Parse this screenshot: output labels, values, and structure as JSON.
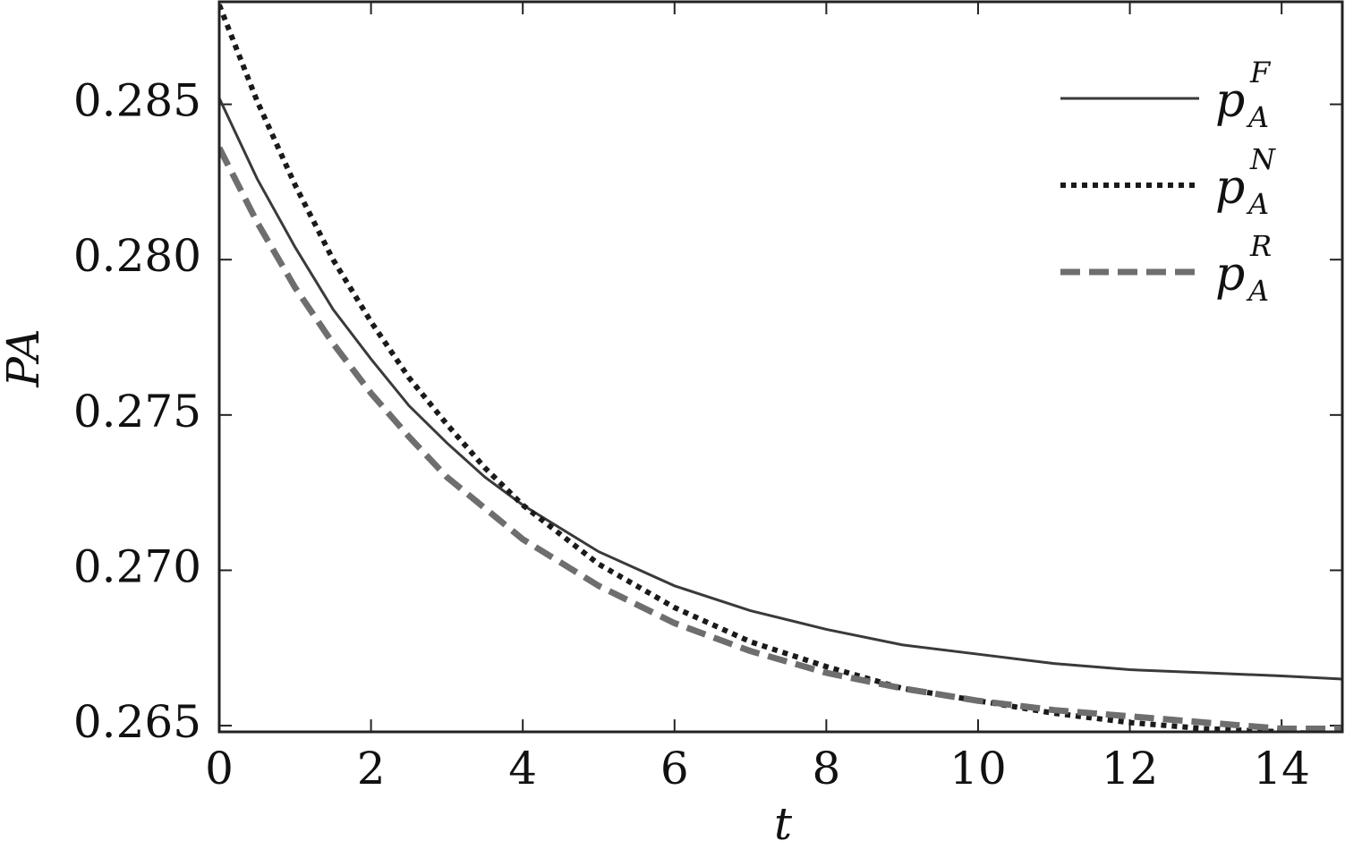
{
  "chart_data": {
    "type": "line",
    "x_label": "t",
    "y_label": "PA",
    "x": [
      0,
      0.5,
      1,
      1.5,
      2,
      2.5,
      3,
      3.5,
      4,
      5,
      6,
      7,
      8,
      9,
      10,
      11,
      12,
      13,
      14,
      14.8
    ],
    "series": [
      {
        "name": {
          "base": "p",
          "sub": "A",
          "sup": "F"
        },
        "color": "#3a3a3a",
        "dash": "solid",
        "values": [
          0.2852,
          0.2826,
          0.2804,
          0.2784,
          0.2768,
          0.2753,
          0.2741,
          0.273,
          0.2721,
          0.2706,
          0.2695,
          0.2687,
          0.2681,
          0.2676,
          0.2673,
          0.267,
          0.2668,
          0.2667,
          0.2666,
          0.2665
        ]
      },
      {
        "name": {
          "base": "p",
          "sub": "A",
          "sup": "N"
        },
        "color": "#1a1a1a",
        "dash": "dotted",
        "values": [
          0.2882,
          0.2851,
          0.2824,
          0.28,
          0.278,
          0.2762,
          0.2747,
          0.2733,
          0.2721,
          0.2702,
          0.2688,
          0.2677,
          0.2669,
          0.2662,
          0.2658,
          0.2654,
          0.2651,
          0.2649,
          0.2648,
          0.2647
        ]
      },
      {
        "name": {
          "base": "p",
          "sub": "A",
          "sup": "R"
        },
        "color": "#6e6e6e",
        "dash": "dashed",
        "values": [
          0.2836,
          0.2812,
          0.2791,
          0.2773,
          0.2757,
          0.2743,
          0.273,
          0.272,
          0.271,
          0.2695,
          0.2683,
          0.2674,
          0.2667,
          0.2662,
          0.2658,
          0.2655,
          0.2653,
          0.2651,
          0.2649,
          0.2649
        ]
      }
    ],
    "xlim": [
      0,
      14.8
    ],
    "ylim": [
      0.2648,
      0.2883
    ],
    "xticks": [
      0,
      2,
      4,
      6,
      8,
      10,
      12,
      14
    ],
    "yticks": [
      {
        "value": 0.265,
        "label": "0.265"
      },
      {
        "value": 0.27,
        "label": "0.270"
      },
      {
        "value": 0.275,
        "label": "0.275"
      },
      {
        "value": 0.28,
        "label": "0.280"
      },
      {
        "value": 0.285,
        "label": "0.285"
      }
    ],
    "grid": false,
    "legend": "upper right"
  }
}
